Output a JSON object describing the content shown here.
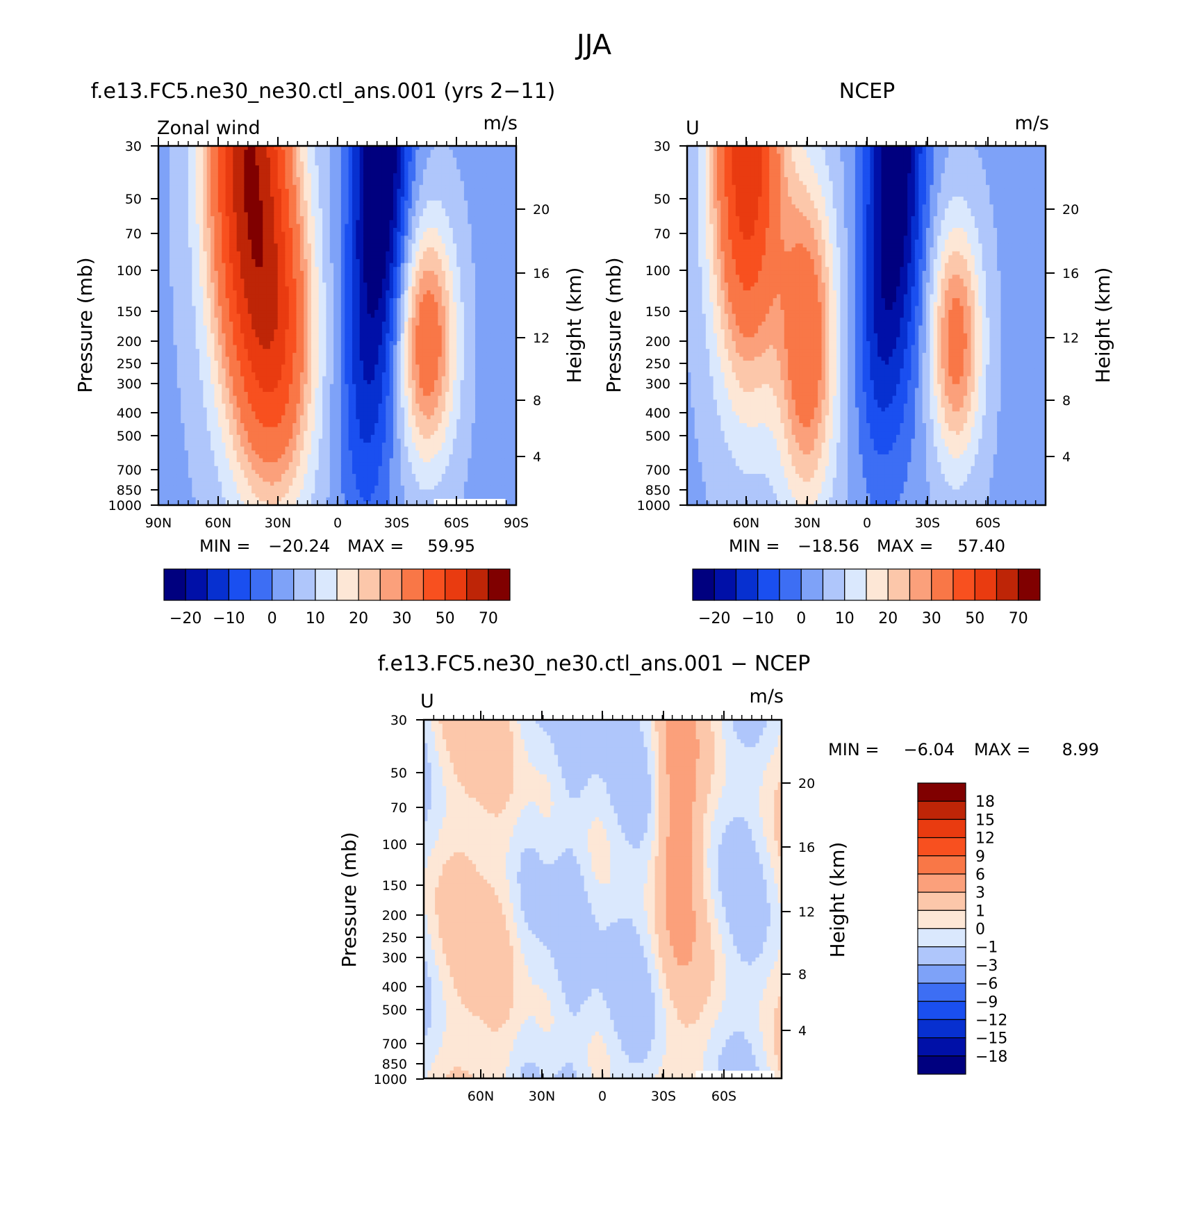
{
  "title": "JJA",
  "colors": {
    "neg": [
      "#00007F",
      "#0010A8",
      "#0730D0",
      "#1A4FF0",
      "#3D6EF4",
      "#7EA2F8",
      "#AFC6FB",
      "#DAE8FD"
    ],
    "pos": [
      "#FDE7D6",
      "#FCC7AA",
      "#FBA07B",
      "#F97747",
      "#F8501F",
      "#E93B10",
      "#BE2507",
      "#800000"
    ],
    "white": "#FFFFFF",
    "frame": "#000000"
  },
  "chart_data": [
    {
      "type": "heatmap",
      "title": "f.e13.FC5.ne30_ne30.ctl_ans.001 (yrs 2−11)",
      "left_label": "Zonal wind",
      "units": "m/s",
      "ylabel": "Pressure (mb)",
      "ylabel_right": "Height (km)",
      "x_ticks": [
        "90N",
        "60N",
        "30N",
        "0",
        "30S",
        "60S",
        "90S"
      ],
      "x_values": [
        -90,
        -60,
        -30,
        0,
        30,
        60,
        90
      ],
      "y_ticks": [
        30,
        50,
        70,
        100,
        150,
        200,
        250,
        300,
        400,
        500,
        700,
        850,
        1000
      ],
      "height_ticks": [
        20,
        16,
        12,
        8,
        4
      ],
      "min_label": "MIN =",
      "min_value": "−20.24",
      "max_label": "MAX =",
      "max_value": "59.95",
      "colorbar_labels": [
        "−20",
        "−10",
        "0",
        "10",
        "20",
        "30",
        "50",
        "70"
      ],
      "jets": {
        "a": {
          "lat": 45,
          "p": 30,
          "amp": 62,
          "sx": 14,
          "sy": 1.6
        },
        "b": {
          "lat": 30,
          "p": 200,
          "amp": 36,
          "sx": 13,
          "sy": 1.1
        },
        "c": {
          "lat": -45,
          "p": 200,
          "amp": 33,
          "sx": 10,
          "sy": 0.8
        },
        "e1": {
          "lat": -22,
          "p": 30,
          "amp": -32,
          "sx": 10,
          "sy": 1.5
        },
        "e2": {
          "lat": -13,
          "p": 300,
          "amp": -12,
          "sx": 9,
          "sy": 1.2
        }
      }
    },
    {
      "type": "heatmap",
      "title": "NCEP",
      "left_label": "U",
      "units": "m/s",
      "ylabel": "Pressure (mb)",
      "ylabel_right": "Height (km)",
      "x_ticks": [
        "60N",
        "30N",
        "0",
        "30S",
        "60S"
      ],
      "x_values": [
        -60,
        -30,
        0,
        30,
        60
      ],
      "y_ticks": [
        30,
        50,
        70,
        100,
        150,
        200,
        250,
        300,
        400,
        500,
        700,
        850,
        1000
      ],
      "height_ticks": [
        20,
        16,
        12,
        8,
        4
      ],
      "min_label": "MIN =",
      "min_value": "−18.56",
      "max_label": "MAX =",
      "max_value": "57.40",
      "colorbar_labels": [
        "−20",
        "−10",
        "0",
        "10",
        "20",
        "30",
        "50",
        "70"
      ],
      "jets": {
        "a": {
          "lat": 60,
          "p": 30,
          "amp": 55,
          "sx": 12,
          "sy": 1.5
        },
        "b": {
          "lat": 30,
          "p": 200,
          "amp": 34,
          "sx": 10,
          "sy": 1.1
        },
        "c": {
          "lat": -45,
          "p": 200,
          "amp": 30,
          "sx": 9,
          "sy": 0.8
        },
        "e1": {
          "lat": -15,
          "p": 30,
          "amp": -30,
          "sx": 10,
          "sy": 1.6
        },
        "e2": {
          "lat": -5,
          "p": 200,
          "amp": -10,
          "sx": 8,
          "sy": 1.0
        }
      }
    },
    {
      "type": "heatmap",
      "title": "f.e13.FC5.ne30_ne30.ctl_ans.001 − NCEP",
      "left_label": "U",
      "units": "m/s",
      "ylabel": "Pressure (mb)",
      "ylabel_right": "Height (km)",
      "x_ticks": [
        "60N",
        "30N",
        "0",
        "30S",
        "60S"
      ],
      "x_values": [
        -60,
        -30,
        0,
        30,
        60
      ],
      "y_ticks": [
        30,
        50,
        70,
        100,
        150,
        200,
        250,
        300,
        400,
        500,
        700,
        850,
        1000
      ],
      "height_ticks": [
        20,
        16,
        12,
        8,
        4
      ],
      "min_label": "MIN =",
      "min_value": "−6.04",
      "max_label": "MAX =",
      "max_value": "8.99",
      "colorbar_labels": [
        "18",
        "15",
        "12",
        "9",
        "6",
        "3",
        "1",
        "0",
        "−1",
        "−3",
        "−6",
        "−9",
        "−12",
        "−15",
        "−18"
      ]
    }
  ]
}
